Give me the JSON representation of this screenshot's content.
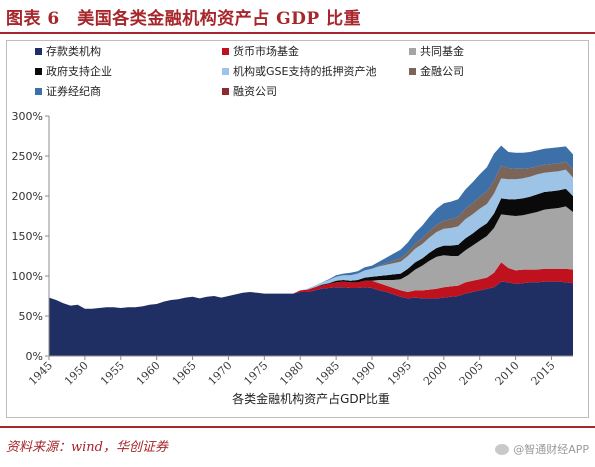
{
  "title": "图表 6　美国各类金融机构资产占 GDP 比重",
  "source": "资料来源：wind，华创证券",
  "watermark": "@智通财经APP",
  "chart_data": {
    "type": "area",
    "stacked": true,
    "title": "",
    "xlabel": "各类金融机构资产占GDP比重",
    "ylabel": "",
    "xlim": [
      1945,
      2018
    ],
    "ylim": [
      0,
      300
    ],
    "y_unit": "%",
    "y_ticks": [
      "0%",
      "50%",
      "100%",
      "150%",
      "200%",
      "250%",
      "300%"
    ],
    "x_ticks": [
      "1945",
      "1950",
      "1955",
      "1960",
      "1965",
      "1970",
      "1975",
      "1980",
      "1985",
      "1990",
      "1995",
      "2000",
      "2005",
      "2010",
      "2015"
    ],
    "x_tick_rotation": -45,
    "grid": false,
    "legend_position": "top",
    "x": [
      1945,
      1946,
      1947,
      1948,
      1949,
      1950,
      1951,
      1952,
      1953,
      1954,
      1955,
      1956,
      1957,
      1958,
      1959,
      1960,
      1961,
      1962,
      1963,
      1964,
      1965,
      1966,
      1967,
      1968,
      1969,
      1970,
      1971,
      1972,
      1973,
      1974,
      1975,
      1976,
      1977,
      1978,
      1979,
      1980,
      1981,
      1982,
      1983,
      1984,
      1985,
      1986,
      1987,
      1988,
      1989,
      1990,
      1991,
      1992,
      1993,
      1994,
      1995,
      1996,
      1997,
      1998,
      1999,
      2000,
      2001,
      2002,
      2003,
      2004,
      2005,
      2006,
      2007,
      2008,
      2009,
      2010,
      2011,
      2012,
      2013,
      2014,
      2015,
      2016,
      2017,
      2018
    ],
    "series": [
      {
        "name": "存款类机构",
        "color": "#1f2f64",
        "values": [
          73,
          70,
          66,
          63,
          64,
          59,
          59,
          60,
          61,
          61,
          60,
          61,
          61,
          62,
          64,
          65,
          68,
          70,
          71,
          73,
          74,
          72,
          74,
          75,
          73,
          75,
          77,
          79,
          80,
          79,
          78,
          78,
          78,
          78,
          78,
          80,
          80,
          82,
          84,
          85,
          86,
          86,
          85,
          85,
          86,
          85,
          82,
          80,
          77,
          74,
          72,
          73,
          72,
          72,
          72,
          73,
          74,
          75,
          78,
          80,
          82,
          84,
          86,
          93,
          92,
          90,
          91,
          92,
          92,
          93,
          93,
          93,
          92,
          91
        ]
      },
      {
        "name": "货币市场基金",
        "color": "#c0111f",
        "values": [
          0,
          0,
          0,
          0,
          0,
          0,
          0,
          0,
          0,
          0,
          0,
          0,
          0,
          0,
          0,
          0,
          0,
          0,
          0,
          0,
          0,
          0,
          0,
          0,
          0,
          0,
          0,
          0,
          0,
          0,
          0,
          0,
          0,
          0,
          0,
          2,
          3,
          4,
          4,
          5,
          6,
          7,
          7,
          7,
          8,
          9,
          9,
          8,
          8,
          8,
          8,
          9,
          10,
          11,
          12,
          13,
          13,
          13,
          14,
          14,
          14,
          14,
          18,
          24,
          18,
          17,
          17,
          16,
          16,
          16,
          16,
          16,
          17,
          17
        ]
      },
      {
        "name": "共同基金",
        "color": "#a5a5a5",
        "values": [
          0,
          0,
          0,
          0,
          0,
          0,
          0,
          0,
          0,
          0,
          0,
          0,
          0,
          0,
          0,
          0,
          0,
          0,
          0,
          0,
          0,
          0,
          0,
          0,
          0,
          0,
          0,
          0,
          0,
          0,
          0,
          0,
          0,
          0,
          0,
          0,
          0,
          0,
          0,
          0,
          0,
          0,
          0,
          0,
          0,
          0,
          4,
          7,
          10,
          14,
          21,
          26,
          31,
          36,
          40,
          40,
          38,
          37,
          40,
          44,
          48,
          52,
          56,
          60,
          66,
          68,
          68,
          70,
          72,
          74,
          75,
          76,
          78,
          72
        ]
      },
      {
        "name": "政府支持企业",
        "color": "#0a0a0a",
        "values": [
          0,
          0,
          0,
          0,
          0,
          0,
          0,
          0,
          0,
          0,
          0,
          0,
          0,
          0,
          0,
          0,
          0,
          0,
          0,
          0,
          0,
          0,
          0,
          0,
          0,
          0,
          0,
          0,
          0,
          0,
          0,
          0,
          0,
          0,
          0,
          0,
          0,
          0,
          1,
          1,
          2,
          2,
          2,
          3,
          4,
          5,
          5,
          6,
          7,
          7,
          8,
          9,
          9,
          10,
          11,
          12,
          13,
          14,
          15,
          15,
          16,
          16,
          18,
          20,
          20,
          21,
          21,
          21,
          22,
          22,
          22,
          22,
          22,
          20
        ]
      },
      {
        "name": "机构或GSE支持的抵押资产池",
        "color": "#9dc3e6",
        "values": [
          0,
          0,
          0,
          0,
          0,
          0,
          0,
          0,
          0,
          0,
          0,
          0,
          0,
          0,
          0,
          0,
          0,
          0,
          0,
          0,
          0,
          0,
          0,
          0,
          0,
          0,
          0,
          0,
          0,
          0,
          0,
          0,
          0,
          0,
          0,
          0,
          1,
          2,
          3,
          4,
          5,
          6,
          7,
          8,
          9,
          10,
          12,
          13,
          14,
          15,
          16,
          17,
          18,
          19,
          20,
          21,
          22,
          23,
          24,
          24,
          24,
          24,
          25,
          25,
          25,
          25,
          25,
          25,
          25,
          24,
          24,
          24,
          24,
          23
        ]
      },
      {
        "name": "金融公司",
        "color": "#7b6559",
        "values": [
          0,
          0,
          0,
          0,
          0,
          0,
          0,
          0,
          0,
          0,
          0,
          0,
          0,
          0,
          0,
          0,
          0,
          0,
          0,
          0,
          0,
          0,
          0,
          0,
          0,
          0,
          0,
          0,
          0,
          0,
          0,
          0,
          0,
          0,
          0,
          0,
          0,
          0,
          0,
          0,
          0,
          0,
          0,
          0,
          0,
          0,
          1,
          2,
          3,
          4,
          5,
          6,
          7,
          8,
          9,
          10,
          11,
          12,
          13,
          14,
          15,
          16,
          16,
          16,
          14,
          13,
          12,
          11,
          10,
          10,
          10,
          10,
          10,
          10
        ]
      },
      {
        "name": "证券经纪商",
        "color": "#3d6fa8",
        "values": [
          0,
          0,
          0,
          0,
          0,
          0,
          0,
          0,
          0,
          0,
          0,
          0,
          0,
          0,
          0,
          0,
          0,
          0,
          0,
          0,
          0,
          0,
          0,
          0,
          0,
          0,
          0,
          0,
          0,
          0,
          0,
          0,
          0,
          0,
          0,
          0,
          0,
          0,
          0,
          1,
          2,
          2,
          3,
          3,
          4,
          4,
          5,
          7,
          9,
          11,
          12,
          14,
          16,
          18,
          20,
          22,
          22,
          22,
          24,
          26,
          28,
          30,
          34,
          25,
          20,
          20,
          20,
          20,
          20,
          20,
          20,
          20,
          19,
          19
        ]
      },
      {
        "name": "融资公司",
        "color": "#8b2a30",
        "values": [
          0,
          0,
          0,
          0,
          0,
          0,
          0,
          0,
          0,
          0,
          0,
          0,
          0,
          0,
          0,
          0,
          0,
          0,
          0,
          0,
          0,
          0,
          0,
          0,
          0,
          0,
          0,
          0,
          0,
          0,
          0,
          0,
          0,
          0,
          0,
          0,
          0,
          0,
          0,
          0,
          0,
          0,
          0,
          0,
          0,
          0,
          0,
          0,
          0,
          0,
          0,
          0,
          0,
          0,
          0,
          0,
          0,
          0,
          0,
          0,
          0,
          0,
          0,
          0,
          0,
          0,
          0,
          0,
          0,
          0,
          0,
          0,
          0,
          0
        ]
      }
    ]
  }
}
